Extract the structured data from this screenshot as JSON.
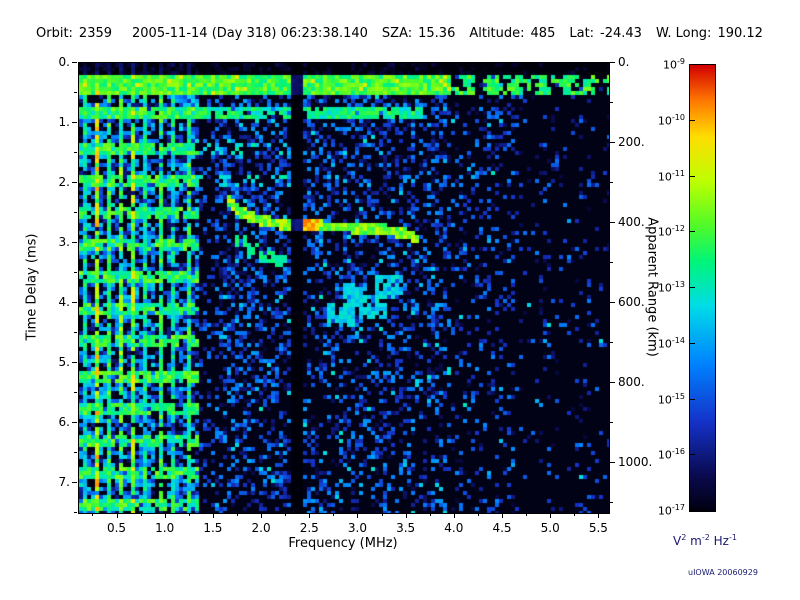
{
  "header": {
    "items": [
      {
        "label": "Orbit:",
        "value": "2359"
      },
      {
        "label": "",
        "value": "2005-11-14 (Day 318) 06:23:38.140"
      },
      {
        "label": "SZA:",
        "value": "15.36"
      },
      {
        "label": "Altitude:",
        "value": "485"
      },
      {
        "label": "Lat:",
        "value": "-24.43"
      },
      {
        "label": "W. Long:",
        "value": "190.12"
      }
    ]
  },
  "credit": "uIOWA 20060929",
  "chart_data": {
    "type": "heatmap",
    "title": "MARSIS-style radar ionogram spectrogram",
    "xlabel": "Frequency (MHz)",
    "ylabel_left": "Time Delay (ms)",
    "ylabel_right": "Apparent Range (km)",
    "x_range": [
      0.1,
      5.6
    ],
    "x_tick_values": [
      0.5,
      1.0,
      1.5,
      2.0,
      2.5,
      3.0,
      3.5,
      4.0,
      4.5,
      5.0,
      5.5
    ],
    "x_tick_labels": [
      "0.5",
      "1.0",
      "1.5",
      "2.0",
      "2.5",
      "3.0",
      "3.5",
      "4.0",
      "4.5",
      "5.0",
      "5.5"
    ],
    "y_range": [
      0,
      7.5
    ],
    "y_tick_values": [
      0,
      1,
      2,
      3,
      4,
      5,
      6,
      7
    ],
    "y_tick_labels": [
      "0.",
      "1.",
      "2.",
      "3.",
      "4.",
      "5.",
      "6.",
      "7."
    ],
    "y2_tick_values": [
      0,
      200,
      400,
      600,
      800,
      1000
    ],
    "y2_tick_labels": [
      "0.",
      "200.",
      "400.",
      "600.",
      "800.",
      "1000."
    ],
    "km_per_ms": 150,
    "grid": false,
    "colorbar": {
      "exponents": [
        -9,
        -10,
        -11,
        -12,
        -13,
        -14,
        -15,
        -16,
        -17
      ],
      "units_parts": [
        [
          "V",
          "2"
        ],
        [
          "m",
          "-2"
        ],
        [
          "Hz",
          "-1"
        ]
      ]
    },
    "features": {
      "noise_regions": [
        {
          "f0": 0.1,
          "f1": 0.88,
          "density": 0.62,
          "vmax": 0.4,
          "cyan": 0.16
        },
        {
          "f0": 0.88,
          "f1": 1.02,
          "density": 0.25,
          "vmax": 0.3,
          "cyan": 0.08
        },
        {
          "f0": 1.02,
          "f1": 1.32,
          "density": 0.6,
          "vmax": 0.38,
          "cyan": 0.14
        },
        {
          "f0": 1.32,
          "f1": 1.5,
          "density": 0.22,
          "vmax": 0.28,
          "cyan": 0.05
        },
        {
          "f0": 1.5,
          "f1": 2.28,
          "density": 0.5,
          "vmax": 0.32,
          "cyan": 0.1
        },
        {
          "f0": 2.28,
          "f1": 2.42,
          "density": 0.05,
          "vmax": 0.15,
          "cyan": 0.0
        },
        {
          "f0": 2.42,
          "f1": 3.9,
          "density": 0.42,
          "vmax": 0.32,
          "cyan": 0.1
        },
        {
          "f0": 3.9,
          "f1": 4.6,
          "density": 0.25,
          "vmax": 0.3,
          "cyan": 0.06
        },
        {
          "f0": 4.6,
          "f1": 5.6,
          "density": 0.11,
          "vmax": 0.28,
          "cyan": 0.05
        }
      ],
      "time_fade": 0.3,
      "plasma_lines": [
        {
          "f": 0.15,
          "v": 0.55
        },
        {
          "f": 0.28,
          "v": 0.82
        },
        {
          "f": 0.41,
          "v": 0.62
        },
        {
          "f": 0.55,
          "v": 0.68
        },
        {
          "f": 0.67,
          "v": 0.78
        },
        {
          "f": 0.8,
          "v": 0.58
        },
        {
          "f": 0.94,
          "v": 0.62
        },
        {
          "f": 1.08,
          "v": 0.57
        },
        {
          "f": 1.22,
          "v": 0.62
        }
      ],
      "cyclotron_rows": {
        "t0": 0.32,
        "dt": 0.54,
        "count": 14,
        "f_main": 1.35,
        "f_ext": 2.3,
        "ext_rows": 4,
        "v": 0.58,
        "fill": 0.75,
        "fill_ext": 0.3
      },
      "surface_band": {
        "t0": 0.2,
        "t1": 0.5,
        "v": 0.62,
        "blob_f": 3.95,
        "blob_fill": 0.6
      },
      "second_band": {
        "t0": 0.72,
        "t1": 0.95,
        "f0": 0.1,
        "f1": 3.65,
        "v": 0.55,
        "fill": 0.85,
        "gaps": [
          [
            2.0,
            2.18
          ],
          [
            2.28,
            2.42
          ]
        ]
      },
      "trace": {
        "points": [
          [
            1.62,
            2.2
          ],
          [
            1.7,
            2.38
          ],
          [
            1.8,
            2.5
          ],
          [
            1.95,
            2.6
          ],
          [
            2.15,
            2.66
          ],
          [
            2.45,
            2.7
          ],
          [
            2.75,
            2.72
          ],
          [
            3.05,
            2.74
          ],
          [
            3.3,
            2.78
          ],
          [
            3.5,
            2.85
          ],
          [
            3.62,
            2.93
          ]
        ],
        "v": 0.68,
        "hot_f": [
          2.35,
          2.6
        ],
        "hot_v": 0.88
      },
      "second_hop": [
        [
          1.78,
          2.95
        ],
        [
          1.9,
          3.1
        ],
        [
          2.05,
          3.22
        ],
        [
          2.2,
          3.3
        ]
      ],
      "cyan_patches": [
        [
          2.95,
          3.85
        ],
        [
          3.15,
          4.05
        ],
        [
          2.8,
          4.2
        ],
        [
          3.3,
          3.7
        ]
      ],
      "blank_column": [
        2.28,
        2.42
      ],
      "top_black_ms": 0.18
    }
  }
}
